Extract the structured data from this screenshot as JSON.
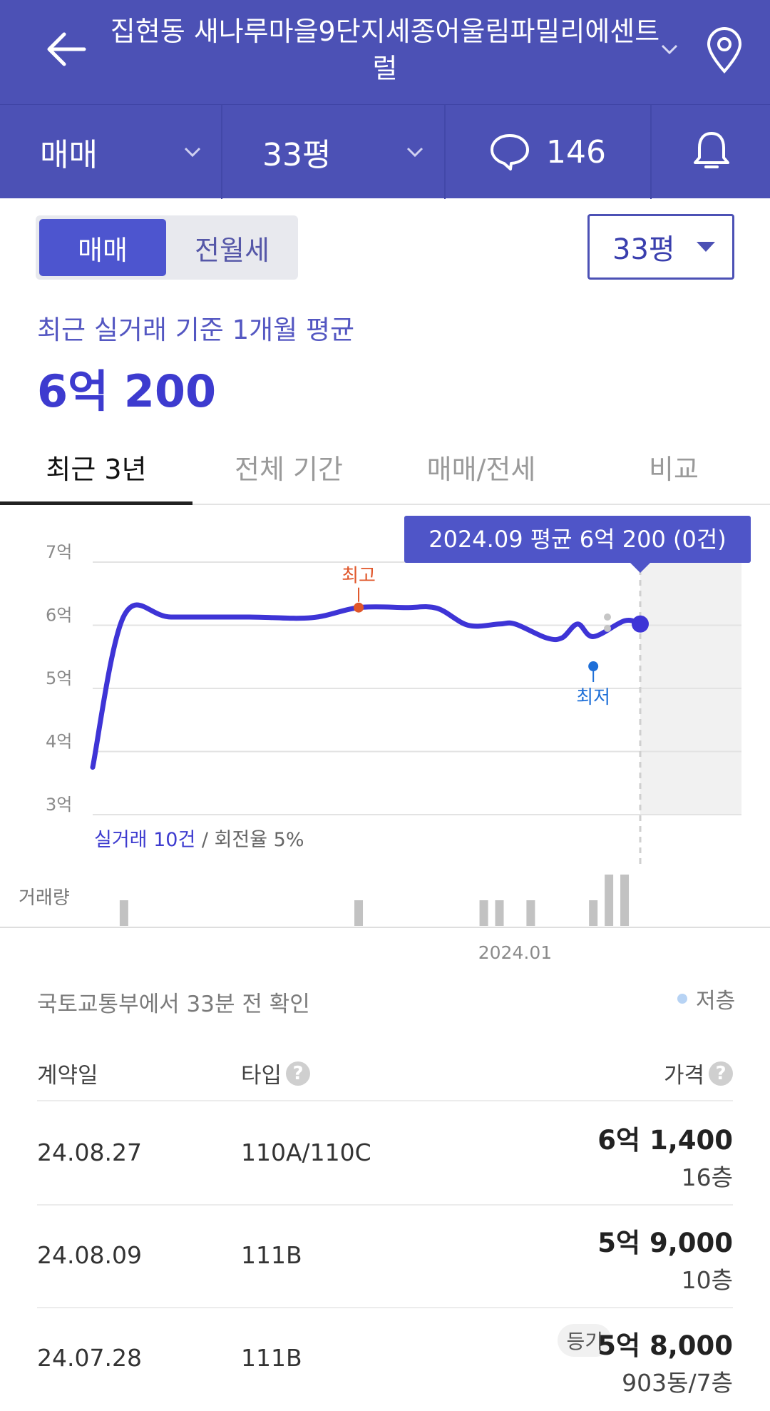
{
  "header": {
    "title": "집현동 새나루마을9단지세종어울림파밀리에센트럴"
  },
  "subbar": {
    "deal_type": "매매",
    "size": "33평",
    "comment_count": "146"
  },
  "filters": {
    "seg_active": "매매",
    "seg_inactive": "전월세",
    "pyeong": "33평"
  },
  "summary": {
    "label": "최근 실거래 기준 1개월 평균",
    "value": "6억 200"
  },
  "tabs": [
    "최근 3년",
    "전체 기간",
    "매매/전세",
    "비교"
  ],
  "chart_data": {
    "type": "line",
    "y_ticks": [
      "7억",
      "6억",
      "5억",
      "4억",
      "3억"
    ],
    "ylim": [
      3,
      7
    ],
    "x_tick_label": "2024.01",
    "points": [
      {
        "x": "2021.10",
        "y": 3.75
      },
      {
        "x": "2021.12",
        "y": 6.15
      },
      {
        "x": "2022.03",
        "y": 6.13
      },
      {
        "x": "2022.08",
        "y": 6.13
      },
      {
        "x": "2022.12",
        "y": 6.12
      },
      {
        "x": "2023.03",
        "y": 6.28
      },
      {
        "x": "2023.06",
        "y": 6.28
      },
      {
        "x": "2023.08",
        "y": 6.27
      },
      {
        "x": "2023.10",
        "y": 6.0
      },
      {
        "x": "2023.12",
        "y": 6.02
      },
      {
        "x": "2024.01",
        "y": 6.02
      },
      {
        "x": "2024.03",
        "y": 5.8
      },
      {
        "x": "2024.04",
        "y": 5.8
      },
      {
        "x": "2024.05",
        "y": 6.02
      },
      {
        "x": "2024.06",
        "y": 5.82
      },
      {
        "x": "2024.08",
        "y": 6.07
      },
      {
        "x": "2024.09",
        "y": 6.02
      }
    ],
    "max_label": "최고",
    "min_label": "최저",
    "tooltip": "2024.09 평균 6억 200 (0건)",
    "stats_count": "실거래 10건",
    "stats_turnover": "/ 회전율 5%",
    "volume_label": "거래량",
    "volume_bars": [
      {
        "x": "2021.12",
        "v": 1
      },
      {
        "x": "2023.03",
        "v": 1
      },
      {
        "x": "2023.11",
        "v": 1
      },
      {
        "x": "2023.12",
        "v": 1
      },
      {
        "x": "2024.02",
        "v": 1
      },
      {
        "x": "2024.06",
        "v": 1
      },
      {
        "x": "2024.07",
        "v": 2
      },
      {
        "x": "2024.08",
        "v": 2
      }
    ],
    "colors": {
      "line": "#3e34d6",
      "max": "#e0562a",
      "min": "#1e6fd8",
      "tooltip": "#4f55c8"
    }
  },
  "source": "국토교통부에서 33분 전 확인",
  "legend": "저층",
  "table": {
    "headers": {
      "date": "계약일",
      "type": "타입",
      "price": "가격"
    },
    "rows": [
      {
        "date": "24.08.27",
        "type": "110A/110C",
        "price": "6억 1,400",
        "floor": "16층",
        "badge": ""
      },
      {
        "date": "24.08.09",
        "type": "111B",
        "price": "5억 9,000",
        "floor": "10층",
        "badge": ""
      },
      {
        "date": "24.07.28",
        "type": "111B",
        "price": "5억 8,000",
        "floor": "903동/7층",
        "badge": "등기"
      }
    ]
  }
}
